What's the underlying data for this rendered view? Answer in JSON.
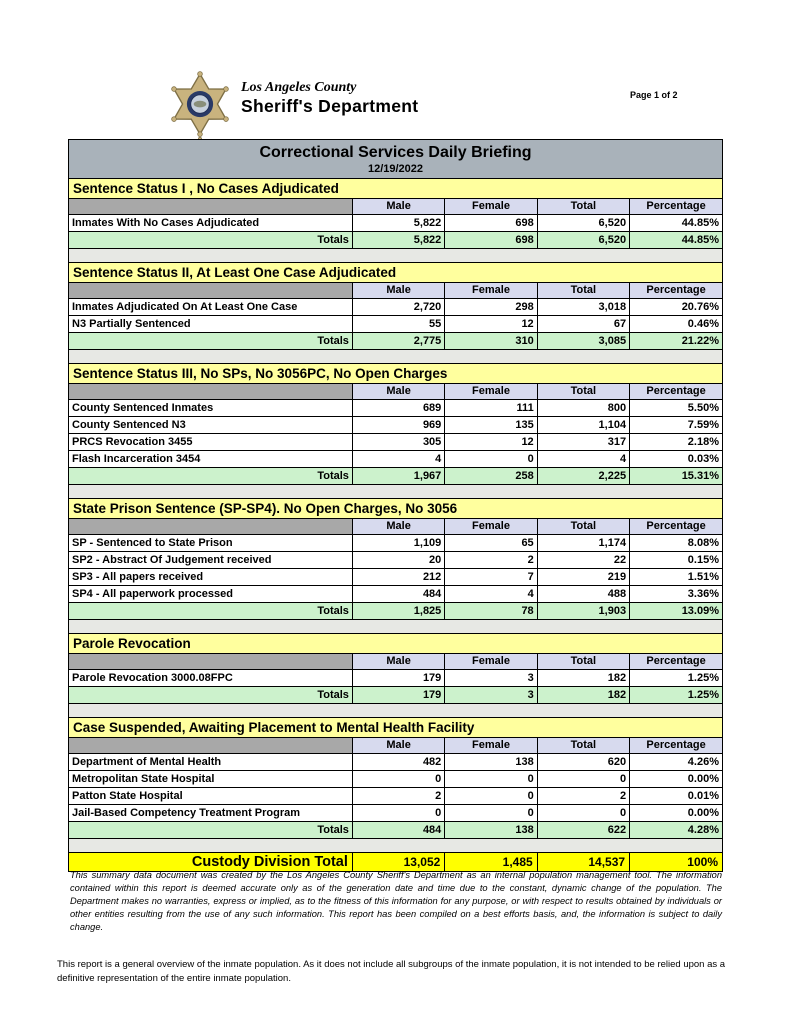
{
  "page": {
    "label": "Page 1 of 2"
  },
  "logo": {
    "icon": "sheriff-star-badge",
    "agency_line1": "Los Angeles County",
    "agency_line2": "Sheriff's Department"
  },
  "report": {
    "title": "Correctional Services Daily Briefing",
    "date": "12/19/2022",
    "columns": [
      "Male",
      "Female",
      "Total",
      "Percentage"
    ],
    "totals_label": "Totals",
    "sections": [
      {
        "title": "Sentence Status I , No Cases Adjudicated",
        "rows": [
          {
            "label": "Inmates With No Cases Adjudicated",
            "male": "5,822",
            "female": "698",
            "total": "6,520",
            "percentage": "44.85%"
          }
        ],
        "totals": {
          "male": "5,822",
          "female": "698",
          "total": "6,520",
          "percentage": "44.85%"
        }
      },
      {
        "title": "Sentence Status II, At Least One Case Adjudicated",
        "rows": [
          {
            "label": "Inmates Adjudicated On At Least One Case",
            "male": "2,720",
            "female": "298",
            "total": "3,018",
            "percentage": "20.76%"
          },
          {
            "label": "N3 Partially Sentenced",
            "male": "55",
            "female": "12",
            "total": "67",
            "percentage": "0.46%"
          }
        ],
        "totals": {
          "male": "2,775",
          "female": "310",
          "total": "3,085",
          "percentage": "21.22%"
        }
      },
      {
        "title": "Sentence Status III, No SPs, No 3056PC, No Open Charges",
        "rows": [
          {
            "label": "County Sentenced Inmates",
            "male": "689",
            "female": "111",
            "total": "800",
            "percentage": "5.50%"
          },
          {
            "label": "County Sentenced N3",
            "male": "969",
            "female": "135",
            "total": "1,104",
            "percentage": "7.59%"
          },
          {
            "label": "PRCS Revocation 3455",
            "male": "305",
            "female": "12",
            "total": "317",
            "percentage": "2.18%"
          },
          {
            "label": "Flash Incarceration 3454",
            "male": "4",
            "female": "0",
            "total": "4",
            "percentage": "0.03%"
          }
        ],
        "totals": {
          "male": "1,967",
          "female": "258",
          "total": "2,225",
          "percentage": "15.31%"
        }
      },
      {
        "title": "State Prison Sentence (SP-SP4). No Open Charges, No 3056",
        "rows": [
          {
            "label": "SP - Sentenced to State Prison",
            "male": "1,109",
            "female": "65",
            "total": "1,174",
            "percentage": "8.08%"
          },
          {
            "label": "SP2 - Abstract Of Judgement received",
            "male": "20",
            "female": "2",
            "total": "22",
            "percentage": "0.15%"
          },
          {
            "label": "SP3 - All papers received",
            "male": "212",
            "female": "7",
            "total": "219",
            "percentage": "1.51%"
          },
          {
            "label": "SP4 - All paperwork processed",
            "male": "484",
            "female": "4",
            "total": "488",
            "percentage": "3.36%"
          }
        ],
        "totals": {
          "male": "1,825",
          "female": "78",
          "total": "1,903",
          "percentage": "13.09%"
        }
      },
      {
        "title": "Parole Revocation",
        "rows": [
          {
            "label": "Parole Revocation 3000.08FPC",
            "male": "179",
            "female": "3",
            "total": "182",
            "percentage": "1.25%"
          }
        ],
        "totals": {
          "male": "179",
          "female": "3",
          "total": "182",
          "percentage": "1.25%"
        }
      },
      {
        "title": "Case Suspended, Awaiting Placement to Mental Health Facility",
        "rows": [
          {
            "label": "Department of Mental Health",
            "male": "482",
            "female": "138",
            "total": "620",
            "percentage": "4.26%"
          },
          {
            "label": "Metropolitan State Hospital",
            "male": "0",
            "female": "0",
            "total": "0",
            "percentage": "0.00%"
          },
          {
            "label": "Patton State Hospital",
            "male": "2",
            "female": "0",
            "total": "2",
            "percentage": "0.01%"
          },
          {
            "label": "Jail-Based Competency Treatment Program",
            "male": "0",
            "female": "0",
            "total": "0",
            "percentage": "0.00%"
          }
        ],
        "totals": {
          "male": "484",
          "female": "138",
          "total": "622",
          "percentage": "4.28%"
        }
      }
    ],
    "grand_total": {
      "label": "Custody Division Total",
      "male": "13,052",
      "female": "1,485",
      "total": "14,537",
      "percentage": "100%"
    }
  },
  "footnotes": {
    "disclaimer": "This summary data document was created by the Los Angeles County Sheriff's Department as an internal population management tool.  The information contained within this report is deemed accurate only as of the generation date and time due to the constant, dynamic change of the population.  The Department makes no warranties, express or implied, as to the fitness of this information for any purpose, or with respect to results obtained by individuals or other entities resulting from the use of any such information.  This report has been compiled on a best efforts basis, and, the information is subject to daily change.",
    "overview": "This report is a general overview of the inmate population.  As it does not include all subgroups of the inmate population, it is not intended to be relied upon as a definitive representation of the entire inmate population."
  },
  "colors": {
    "title_bar": "#a9b2ba",
    "section_header": "#ffff9e",
    "column_header": "#d7daee",
    "totals_row": "#ccf2cc",
    "corner_cell": "#a8a8a8",
    "spacer_band": "#e7e8e4",
    "grand_total_row": "#ffff00"
  }
}
